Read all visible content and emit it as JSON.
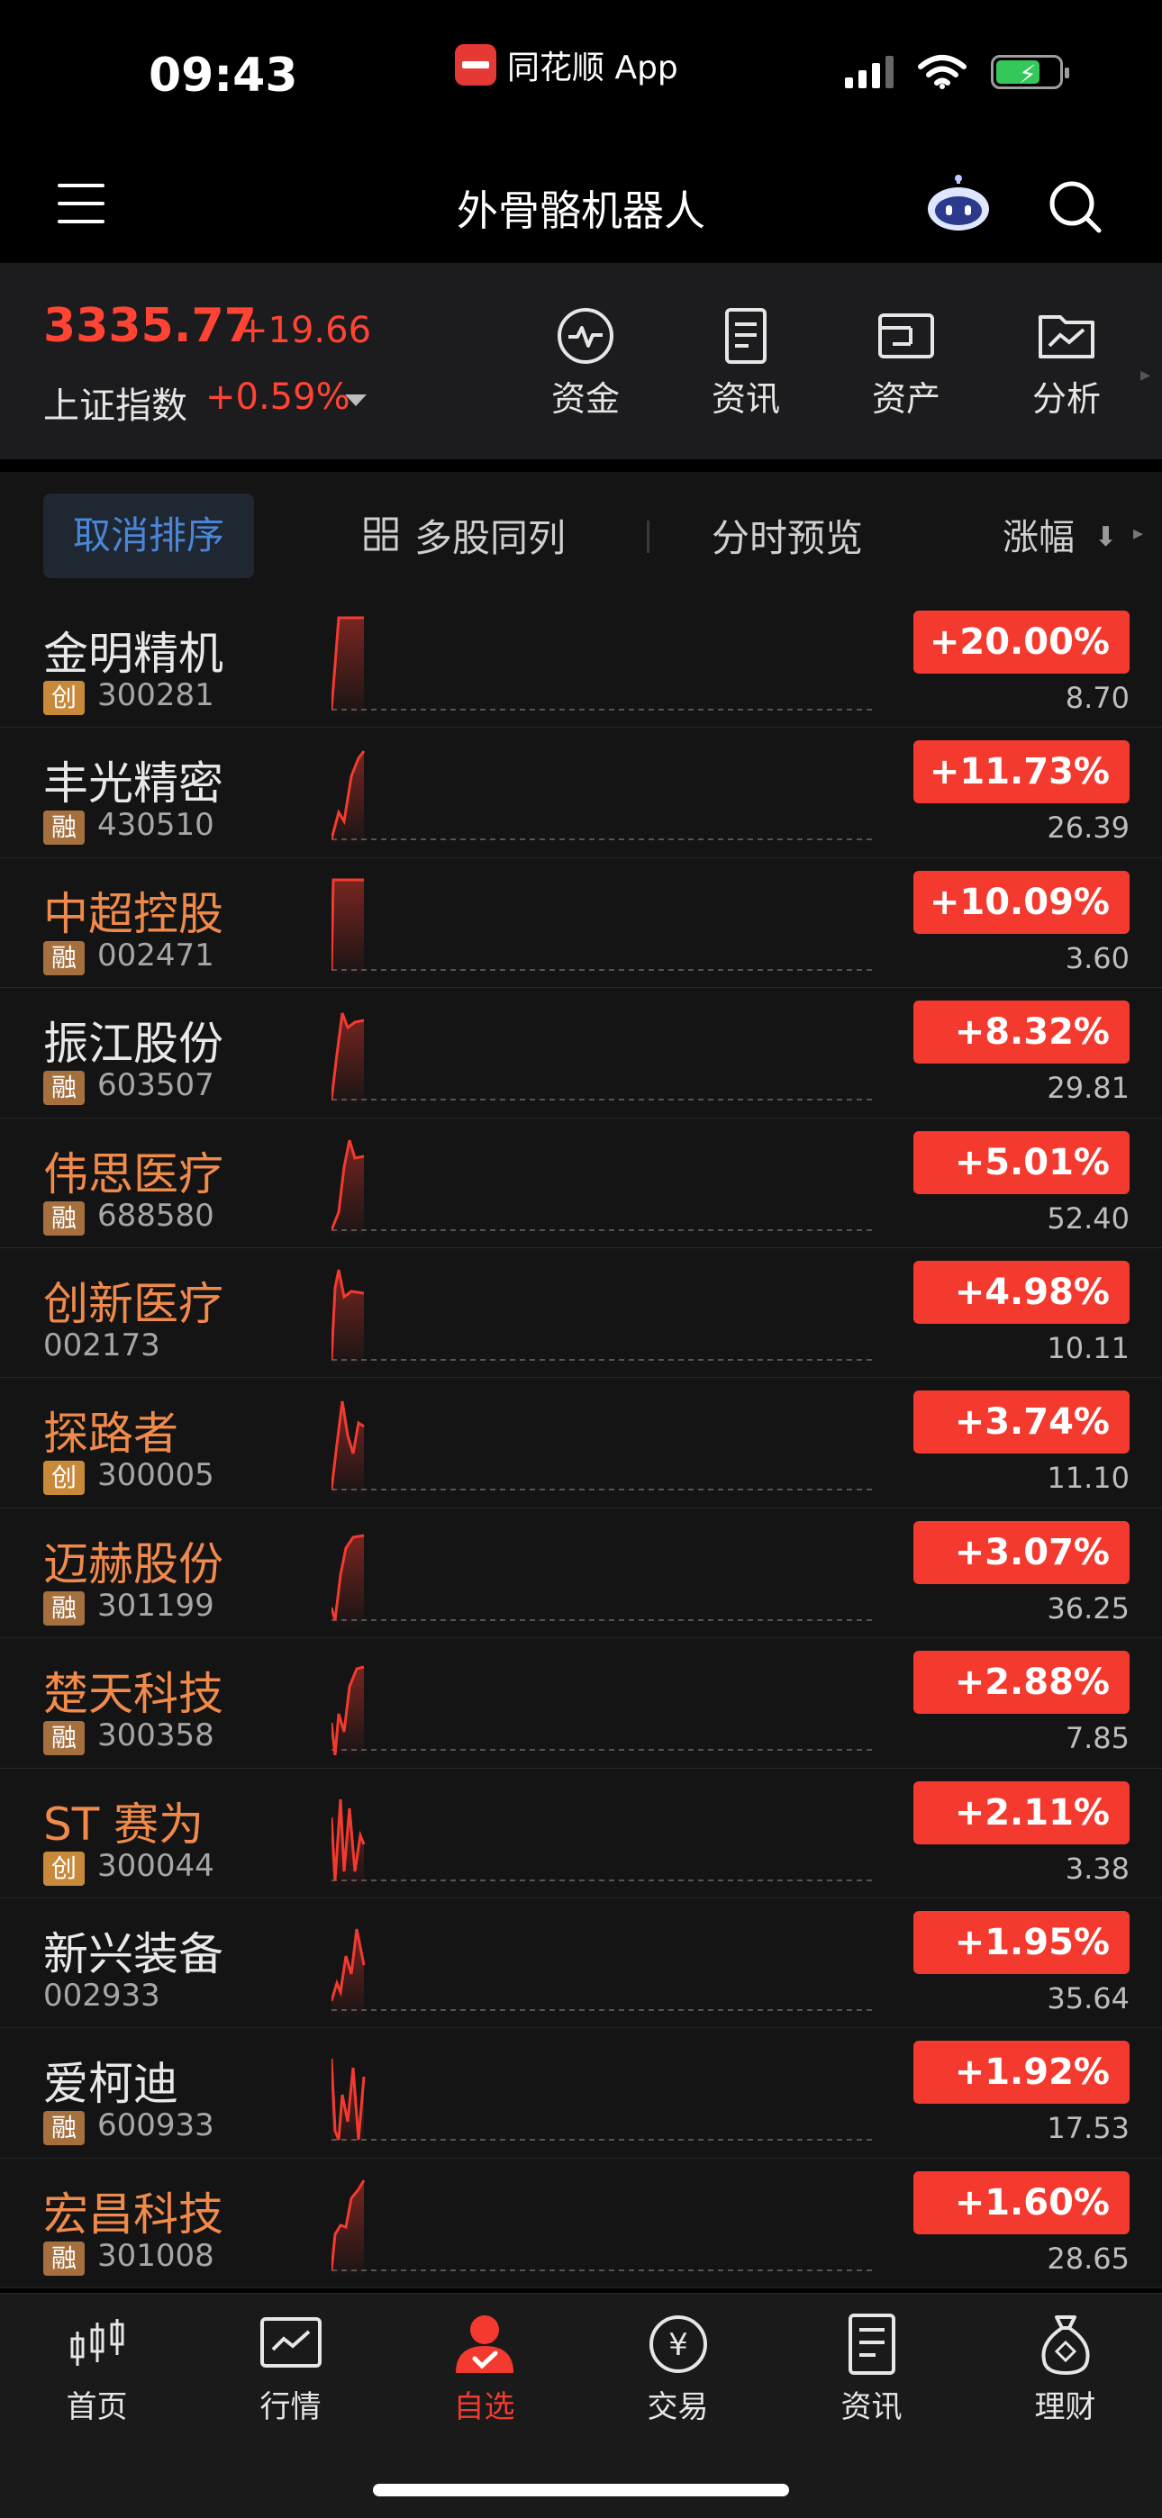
{
  "status_bar": {
    "time": "09:43",
    "app_label": "同花顺 App"
  },
  "nav": {
    "title": "外骨骼机器人"
  },
  "index": {
    "value": "3335.77",
    "change": "+19.66",
    "name": "上证指数",
    "pct": "+0.59%"
  },
  "quick_actions": [
    {
      "label": "资金",
      "icon": "fund-flow-icon"
    },
    {
      "label": "资讯",
      "icon": "news-icon"
    },
    {
      "label": "资产",
      "icon": "wallet-icon"
    },
    {
      "label": "分析",
      "icon": "analysis-folder-icon"
    }
  ],
  "toolbar": {
    "cancel_sort": "取消排序",
    "multi": "多股同列",
    "preview": "分时预览",
    "sort_col": "涨幅"
  },
  "stocks": [
    {
      "name": "金明精机",
      "tag": "创",
      "code": "300281",
      "pct": "+20.00%",
      "price": "8.70",
      "name_color": "plain"
    },
    {
      "name": "丰光精密",
      "tag": "融",
      "code": "430510",
      "pct": "+11.73%",
      "price": "26.39",
      "name_color": "plain"
    },
    {
      "name": "中超控股",
      "tag": "融",
      "code": "002471",
      "pct": "+10.09%",
      "price": "3.60",
      "name_color": "highlight"
    },
    {
      "name": "振江股份",
      "tag": "融",
      "code": "603507",
      "pct": "+8.32%",
      "price": "29.81",
      "name_color": "plain"
    },
    {
      "name": "伟思医疗",
      "tag": "融",
      "code": "688580",
      "pct": "+5.01%",
      "price": "52.40",
      "name_color": "highlight"
    },
    {
      "name": "创新医疗",
      "tag": "",
      "code": "002173",
      "pct": "+4.98%",
      "price": "10.11",
      "name_color": "highlight"
    },
    {
      "name": "探路者",
      "tag": "创",
      "code": "300005",
      "pct": "+3.74%",
      "price": "11.10",
      "name_color": "highlight"
    },
    {
      "name": "迈赫股份",
      "tag": "融",
      "code": "301199",
      "pct": "+3.07%",
      "price": "36.25",
      "name_color": "highlight"
    },
    {
      "name": "楚天科技",
      "tag": "融",
      "code": "300358",
      "pct": "+2.88%",
      "price": "7.85",
      "name_color": "highlight"
    },
    {
      "name": "ST 赛为",
      "tag": "创",
      "code": "300044",
      "pct": "+2.11%",
      "price": "3.38",
      "name_color": "highlight"
    },
    {
      "name": "新兴装备",
      "tag": "",
      "code": "002933",
      "pct": "+1.95%",
      "price": "35.64",
      "name_color": "plain"
    },
    {
      "name": "爱柯迪",
      "tag": "融",
      "code": "600933",
      "pct": "+1.92%",
      "price": "17.53",
      "name_color": "plain"
    },
    {
      "name": "宏昌科技",
      "tag": "融",
      "code": "301008",
      "pct": "+1.60%",
      "price": "28.65",
      "name_color": "highlight"
    }
  ],
  "tabs": [
    {
      "label": "首页",
      "icon": "candlestick-icon",
      "active": false
    },
    {
      "label": "行情",
      "icon": "market-chart-icon",
      "active": false
    },
    {
      "label": "自选",
      "icon": "watchlist-person-icon",
      "active": true
    },
    {
      "label": "交易",
      "icon": "yuan-coin-icon",
      "active": false
    },
    {
      "label": "资讯",
      "icon": "news-doc-icon",
      "active": false
    },
    {
      "label": "理财",
      "icon": "money-bag-icon",
      "active": false
    }
  ],
  "colors": {
    "up": "#f43a2f",
    "highlight_name": "#f08a4b",
    "accent_blue": "#4b86d6"
  }
}
